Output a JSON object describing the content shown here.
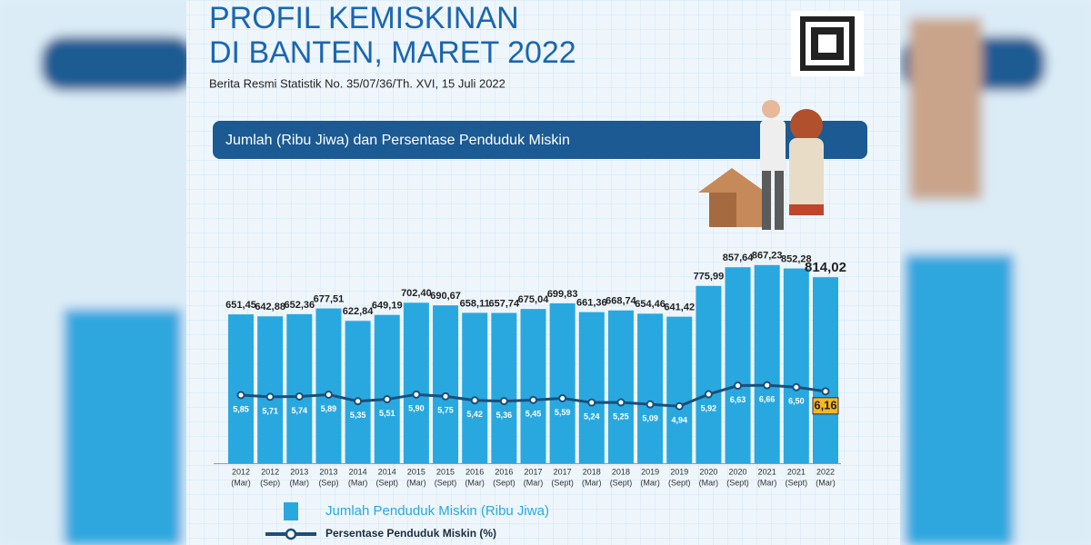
{
  "title": "PROFIL KEMISKINAN",
  "title_line2": "DI BANTEN, MARET 2022",
  "subtitle": "Berita Resmi Statistik No. 35/07/36/Th. XVI, 15 Juli 2022",
  "chart_data": {
    "type": "bar-line",
    "title": "Jumlah (Ribu Jiwa) dan Persentase Penduduk Miskin",
    "categories": [
      [
        "2012",
        "(Mar)"
      ],
      [
        "2012",
        "(Sep)"
      ],
      [
        "2013",
        "(Mar)"
      ],
      [
        "2013",
        "(Sep)"
      ],
      [
        "2014",
        "(Mar)"
      ],
      [
        "2014",
        "(Sept)"
      ],
      [
        "2015",
        "(Mar)"
      ],
      [
        "2015",
        "(Sept)"
      ],
      [
        "2016",
        "(Mar)"
      ],
      [
        "2016",
        "(Sept)"
      ],
      [
        "2017",
        "(Mar)"
      ],
      [
        "2017",
        "(Sept)"
      ],
      [
        "2018",
        "(Mar)"
      ],
      [
        "2018",
        "(Sept)"
      ],
      [
        "2019",
        "(Mar)"
      ],
      [
        "2019",
        "(Sept)"
      ],
      [
        "2020",
        "(Mar)"
      ],
      [
        "2020",
        "(Sept)"
      ],
      [
        "2021",
        "(Mar)"
      ],
      [
        "2021",
        "(Sept)"
      ],
      [
        "2022",
        "(Mar)"
      ]
    ],
    "series": [
      {
        "name": "Jumlah Penduduk Miskin (Ribu Jiwa)",
        "color": "#29a8e0",
        "values": [
          651.45,
          642.88,
          652.36,
          677.51,
          622.84,
          649.19,
          702.4,
          690.67,
          658.11,
          657.74,
          675.04,
          699.83,
          661.36,
          668.74,
          654.46,
          641.42,
          775.99,
          857.64,
          867.23,
          852.28,
          814.02
        ],
        "value_labels": [
          "651,45",
          "642,88",
          "652,36",
          "677,51",
          "622,84",
          "649,19",
          "702,40",
          "690,67",
          "658,11",
          "657,74",
          "675,04",
          "699,83",
          "661,36",
          "668,74",
          "654,46",
          "641,42",
          "775,99",
          "857,64",
          "867,23",
          "852,28",
          "814,02"
        ]
      },
      {
        "name": "Persentase Penduduk Miskin (%)",
        "color": "#1b4f79",
        "values": [
          5.85,
          5.71,
          5.74,
          5.89,
          5.35,
          5.51,
          5.9,
          5.75,
          5.42,
          5.36,
          5.45,
          5.59,
          5.24,
          5.25,
          5.09,
          4.94,
          5.92,
          6.63,
          6.66,
          6.5,
          6.16
        ],
        "value_labels": [
          "5,85",
          "5,71",
          "5,74",
          "5,89",
          "5,35",
          "5,51",
          "5,90",
          "5,75",
          "5,42",
          "5,36",
          "5,45",
          "5,59",
          "5,24",
          "5,25",
          "5,09",
          "4,94",
          "5,92",
          "6,63",
          "6,66",
          "6,50",
          "6,16"
        ]
      }
    ]
  }
}
